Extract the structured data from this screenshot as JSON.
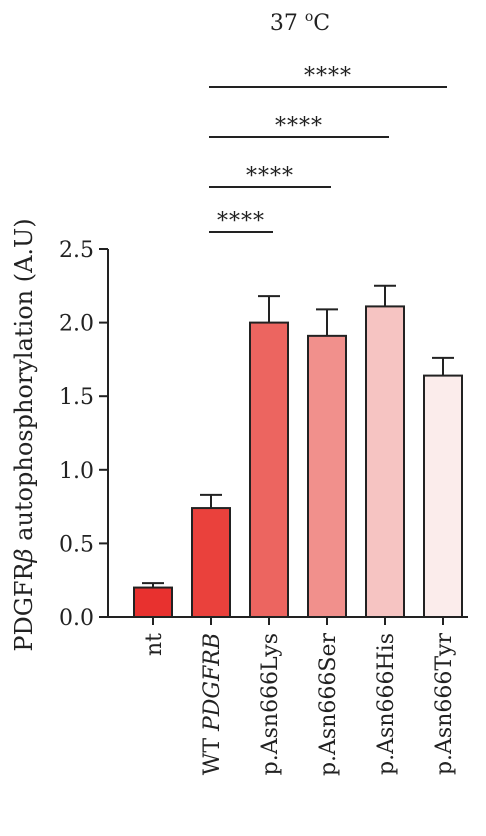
{
  "chart_data": {
    "type": "bar",
    "title": "37 ",
    "title_sup": "o",
    "title_unit": "C",
    "ylabel_pre": "PDGFR",
    "ylabel_greek": "β",
    "ylabel_post": " autophosphorylation (A.U)",
    "ylim": [
      0,
      2.5
    ],
    "yticks": [
      "0.0",
      "0.5",
      "1.0",
      "1.5",
      "2.0",
      "2.5"
    ],
    "ytick_values": [
      0,
      0.5,
      1.0,
      1.5,
      2.0,
      2.5
    ],
    "categories": [
      "nt",
      "WT PDGFRB",
      "p.Asn666Lys",
      "p.Asn666Ser",
      "p.Asn666His",
      "p.Asn666Tyr"
    ],
    "category_prefix": [
      "",
      "WT ",
      "",
      "",
      "",
      ""
    ],
    "category_italic": [
      "",
      "PDGFRB",
      "",
      "",
      "",
      ""
    ],
    "category_plain": [
      "nt",
      "",
      "p.Asn666Lys",
      "p.Asn666Ser",
      "p.Asn666His",
      "p.Asn666Tyr"
    ],
    "values": [
      0.2,
      0.74,
      2.0,
      1.91,
      2.11,
      1.64
    ],
    "errors": [
      0.03,
      0.09,
      0.18,
      0.18,
      0.14,
      0.12
    ],
    "colors": [
      "#e8312f",
      "#ea413c",
      "#ec6560",
      "#f1908c",
      "#f6c4c2",
      "#fbeceb"
    ],
    "significance": [
      {
        "from": 1,
        "to": 2,
        "label": "****"
      },
      {
        "from": 1,
        "to": 3,
        "label": "****"
      },
      {
        "from": 1,
        "to": 4,
        "label": "****"
      },
      {
        "from": 1,
        "to": 5,
        "label": "****"
      }
    ],
    "grid": false,
    "legend": "none"
  }
}
